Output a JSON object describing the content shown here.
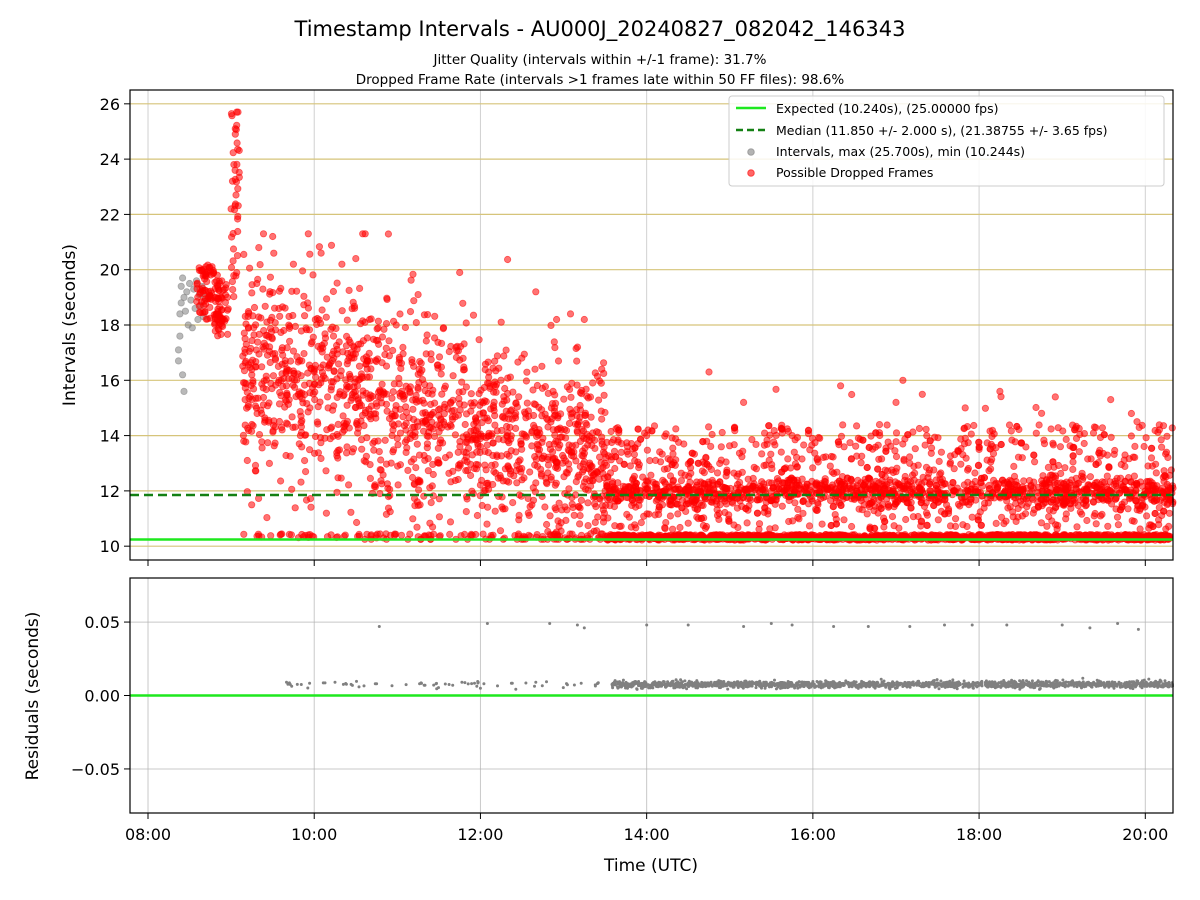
{
  "chart_data": [
    {
      "type": "scatter",
      "title": "Timestamp Intervals - AU000J_20240827_082042_146343",
      "subtitle_lines": [
        "Jitter Quality (intervals within +/-1 frame): 31.7%",
        "Dropped Frame Rate (intervals >1 frames late within 50 FF files): 98.6%"
      ],
      "xlabel": "",
      "ylabel": "Intervals (seconds)",
      "xlim": [
        "07:47",
        "20:20"
      ],
      "ylim": [
        9.5,
        26.5
      ],
      "yticks": [
        10,
        12,
        14,
        16,
        18,
        20,
        22,
        24,
        26
      ],
      "ytick_labels": [
        "10",
        "12",
        "14",
        "16",
        "18",
        "20",
        "22",
        "24",
        "26"
      ],
      "grid": "horizontal, goldenrod",
      "legend_position": "upper-right",
      "lines": [
        {
          "name": "Expected (10.240s), (25.00000 fps)",
          "y": 10.24,
          "color": "#1ee81e",
          "style": "solid"
        },
        {
          "name": "Median (11.850 +/- 2.000 s), (21.38755 +/- 3.65 fps)",
          "y": 11.85,
          "color": "#138013",
          "style": "dashed"
        }
      ],
      "series": [
        {
          "name": "Intervals, max (25.700s), min (10.244s)",
          "color": "#808080",
          "points": [
            [
              "08:22",
              16.7
            ],
            [
              "08:22",
              17.1
            ],
            [
              "08:23",
              17.6
            ],
            [
              "08:23",
              18.4
            ],
            [
              "08:24",
              18.8
            ],
            [
              "08:24",
              19.4
            ],
            [
              "08:25",
              16.2
            ],
            [
              "08:25",
              19.7
            ],
            [
              "08:26",
              15.6
            ],
            [
              "08:26",
              19.0
            ],
            [
              "08:27",
              18.5
            ],
            [
              "08:28",
              19.2
            ],
            [
              "08:29",
              18.0
            ],
            [
              "08:30",
              19.5
            ],
            [
              "08:31",
              18.9
            ],
            [
              "08:32",
              17.9
            ],
            [
              "08:33",
              19.3
            ],
            [
              "08:34",
              18.6
            ],
            [
              "08:35",
              19.6
            ],
            [
              "08:36",
              18.2
            ],
            [
              "08:37",
              19.1
            ],
            [
              "08:38",
              18.7
            ],
            [
              "08:39",
              19.4
            ],
            [
              "08:40",
              18.3
            ],
            [
              "08:41",
              19.0
            ]
          ]
        },
        {
          "name": "Possible Dropped Frames",
          "color": "#ff0000",
          "description_of_distribution": "dense red scatter 08:35-20:20; spike to 25.7 s near 09:00; 14-21 s band 09:15-10:30; 11-16 s band 10:30-13:30; dense line at ~10.3 s and band at ~12 s from 13:30 to 20:20",
          "points_sampled": [
            [
              "08:45",
              19.0
            ],
            [
              "08:50",
              19.8
            ],
            [
              "08:55",
              18.2
            ],
            [
              "09:00",
              22.2
            ],
            [
              "09:01",
              23.2
            ],
            [
              "09:02",
              23.8
            ],
            [
              "09:03",
              24.9
            ],
            [
              "09:03",
              25.1
            ],
            [
              "09:04",
              25.7
            ],
            [
              "09:05",
              25.7
            ],
            [
              "09:10",
              17.0
            ],
            [
              "09:15",
              14.4
            ],
            [
              "09:20",
              20.8
            ],
            [
              "09:30",
              21.2
            ],
            [
              "09:40",
              15.8
            ],
            [
              "09:45",
              20.2
            ],
            [
              "09:50",
              14.0
            ],
            [
              "10:00",
              16.3
            ],
            [
              "10:05",
              20.6
            ],
            [
              "10:10",
              15.0
            ],
            [
              "10:20",
              20.2
            ],
            [
              "10:30",
              20.4
            ],
            [
              "10:35",
              21.3
            ],
            [
              "10:40",
              18.2
            ],
            [
              "10:45",
              10.3
            ],
            [
              "10:50",
              10.3
            ],
            [
              "11:00",
              13.9
            ],
            [
              "11:15",
              19.1
            ],
            [
              "11:30",
              13.0
            ],
            [
              "11:45",
              19.9
            ],
            [
              "12:00",
              13.6
            ],
            [
              "12:15",
              18.1
            ],
            [
              "12:30",
              12.4
            ],
            [
              "12:40",
              19.2
            ],
            [
              "12:55",
              18.2
            ],
            [
              "13:05",
              18.4
            ],
            [
              "13:15",
              18.2
            ],
            [
              "13:25",
              10.3
            ],
            [
              "13:30",
              12.0
            ],
            [
              "13:45",
              10.3
            ],
            [
              "14:00",
              14.0
            ],
            [
              "14:30",
              12.0
            ],
            [
              "14:45",
              16.3
            ],
            [
              "15:10",
              15.2
            ],
            [
              "15:30",
              12.0
            ],
            [
              "15:45",
              14.0
            ],
            [
              "16:00",
              10.3
            ],
            [
              "16:20",
              15.8
            ],
            [
              "16:45",
              12.0
            ],
            [
              "17:00",
              15.2
            ],
            [
              "17:05",
              16.0
            ],
            [
              "17:30",
              12.0
            ],
            [
              "17:50",
              15.0
            ],
            [
              "18:00",
              10.3
            ],
            [
              "18:15",
              15.6
            ],
            [
              "18:30",
              12.0
            ],
            [
              "18:55",
              15.4
            ],
            [
              "19:15",
              12.0
            ],
            [
              "19:35",
              15.3
            ],
            [
              "19:50",
              14.8
            ],
            [
              "20:00",
              12.0
            ],
            [
              "20:15",
              10.3
            ],
            [
              "20:20",
              12.1
            ]
          ]
        }
      ]
    },
    {
      "type": "scatter",
      "title": "",
      "xlabel": "Time (UTC)",
      "ylabel": "Residuals (seconds)",
      "xlim": [
        "07:47",
        "20:20"
      ],
      "ylim": [
        -0.08,
        0.08
      ],
      "xticks": [
        "08:00",
        "10:00",
        "12:00",
        "14:00",
        "16:00",
        "18:00",
        "20:00"
      ],
      "yticks": [
        0.05,
        0.0,
        -0.05
      ],
      "ytick_labels": [
        "0.05",
        "0.00",
        "−0.05"
      ],
      "grid": "both, grey",
      "lines": [
        {
          "name": "zero",
          "y": 0.0,
          "color": "#1ee81e"
        }
      ],
      "series": [
        {
          "name": "",
          "color": "#808080",
          "description_of_distribution": "sparse points ~0.008 from 09:40-13:30, dense band ~0.008 from 13:35-20:20; occasional points ~0.048",
          "points_sampled": [
            [
              "09:40",
              0.009
            ],
            [
              "10:15",
              0.009
            ],
            [
              "10:45",
              0.008
            ],
            [
              "10:47",
              0.047
            ],
            [
              "11:20",
              0.007
            ],
            [
              "11:40",
              0.007
            ],
            [
              "12:00",
              0.005
            ],
            [
              "12:05",
              0.049
            ],
            [
              "12:40",
              0.009
            ],
            [
              "12:50",
              0.049
            ],
            [
              "13:10",
              0.048
            ],
            [
              "13:15",
              0.046
            ],
            [
              "13:40",
              0.008
            ],
            [
              "14:00",
              0.048
            ],
            [
              "14:30",
              0.048
            ],
            [
              "15:10",
              0.047
            ],
            [
              "15:30",
              0.049
            ],
            [
              "15:45",
              0.048
            ],
            [
              "16:15",
              0.047
            ],
            [
              "16:40",
              0.047
            ],
            [
              "17:10",
              0.047
            ],
            [
              "17:35",
              0.048
            ],
            [
              "17:55",
              0.048
            ],
            [
              "18:20",
              0.048
            ],
            [
              "19:00",
              0.048
            ],
            [
              "19:20",
              0.046
            ],
            [
              "19:40",
              0.049
            ],
            [
              "19:55",
              0.045
            ],
            [
              "20:10",
              0.008
            ]
          ]
        }
      ]
    }
  ]
}
